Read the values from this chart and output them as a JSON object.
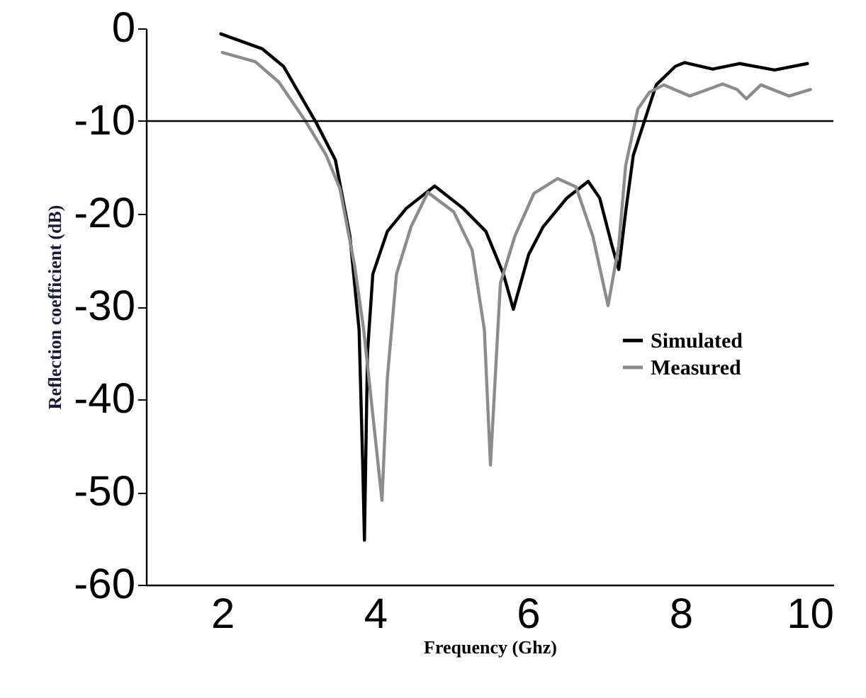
{
  "chart_data": {
    "type": "line",
    "xlabel": "Frequency (Ghz)",
    "ylabel": "Reflection coefficient (dB)",
    "xlim": [
      1,
      10
    ],
    "xticks": [
      2,
      4,
      6,
      8,
      10
    ],
    "ylim": [
      -60,
      0
    ],
    "yticks": [
      -60,
      -50,
      -40,
      -30,
      -20,
      -10,
      0
    ],
    "grid": false,
    "legend": "right",
    "marker": "none",
    "line_style": "solid",
    "ref_lines": [
      {
        "axis": "y",
        "value": -10,
        "color": "#000000"
      }
    ],
    "series": [
      {
        "name": "Simulated",
        "color": "#000000",
        "x": [
          1.98,
          2.52,
          2.8,
          3.23,
          3.48,
          3.67,
          3.79,
          3.84,
          3.86,
          3.9,
          3.97,
          4.16,
          4.41,
          4.78,
          5.15,
          5.45,
          5.68,
          5.81,
          6.01,
          6.2,
          6.51,
          6.79,
          6.94,
          7.1,
          7.19,
          7.28,
          7.38,
          7.53,
          7.68,
          7.93,
          8.05,
          8.42,
          8.77,
          9.23,
          9.66
        ],
        "values": [
          -0.6,
          -2.2,
          -4.1,
          -10.2,
          -14.2,
          -22.4,
          -32.5,
          -47.8,
          -55.2,
          -35,
          -26.5,
          -21.9,
          -19.4,
          -17,
          -19.4,
          -21.9,
          -26.5,
          -30.3,
          -24.4,
          -21.4,
          -18.3,
          -16.5,
          -18.3,
          -23.4,
          -26,
          -19.8,
          -13.7,
          -9.9,
          -6.1,
          -4.1,
          -3.7,
          -4.4,
          -3.8,
          -4.5,
          -3.8
        ]
      },
      {
        "name": "Measured",
        "color": "#8c8c8c",
        "x": [
          2.0,
          2.43,
          2.74,
          3.08,
          3.36,
          3.54,
          3.73,
          3.85,
          3.97,
          4.09,
          4.16,
          4.28,
          4.47,
          4.69,
          5.03,
          5.27,
          5.43,
          5.51,
          5.64,
          5.83,
          6.08,
          6.39,
          6.63,
          6.85,
          7.05,
          7.19,
          7.28,
          7.44,
          7.59,
          7.78,
          8.12,
          8.55,
          8.74,
          8.86,
          9.05,
          9.42,
          9.7
        ],
        "values": [
          -2.6,
          -3.6,
          -5.8,
          -9.9,
          -13.7,
          -17.3,
          -25.5,
          -32.5,
          -41.7,
          -50.9,
          -37.7,
          -26.5,
          -21.4,
          -17.7,
          -19.8,
          -23.9,
          -32.5,
          -47.1,
          -27.5,
          -22.4,
          -17.8,
          -16.2,
          -17.1,
          -22.4,
          -29.9,
          -23.4,
          -14.8,
          -8.7,
          -6.9,
          -6.1,
          -7.3,
          -6.0,
          -6.6,
          -7.6,
          -6.1,
          -7.3,
          -6.6
        ]
      }
    ]
  }
}
